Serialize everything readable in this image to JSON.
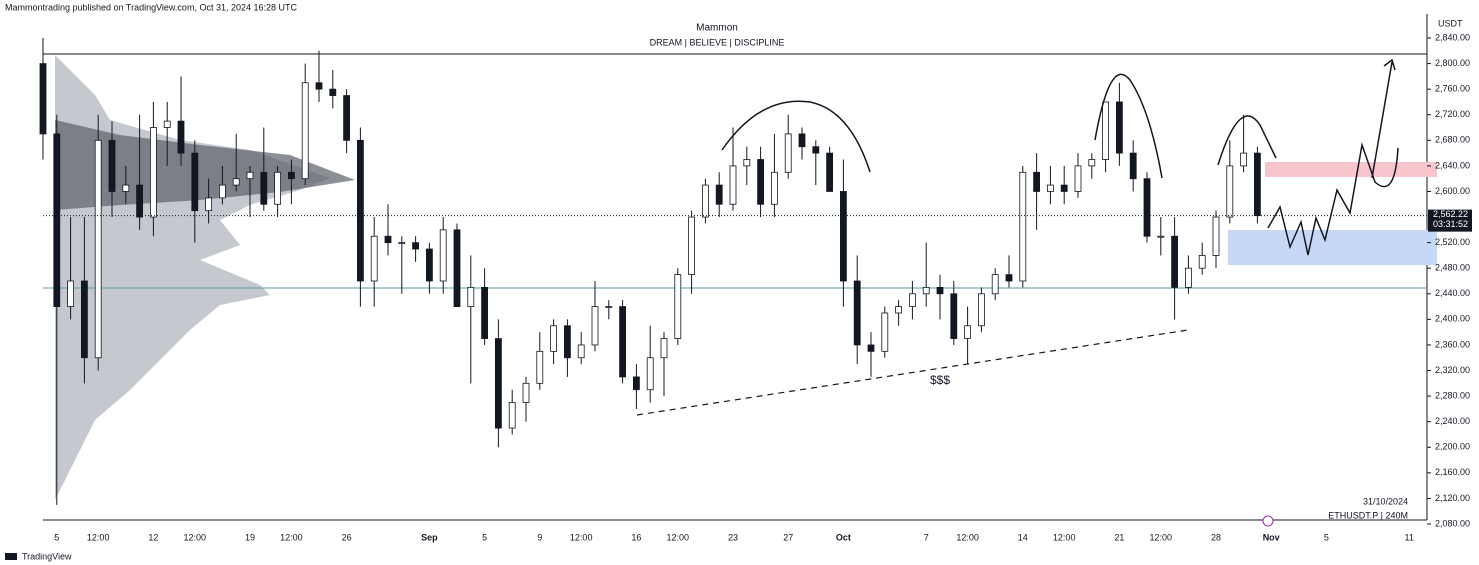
{
  "header": {
    "published": "Mammontrading published on TradingView.com, Oct 31, 2024 16:28 UTC"
  },
  "footer": {
    "brand": "TradingView"
  },
  "chart_data": {
    "type": "candlestick",
    "title": "Mammon",
    "subtitle": "DREAM | BELIEVE | DISCIPLINE",
    "currency": "USDT",
    "date_label": "31/10/2024",
    "symbol": "ETHUSDT.P | 240M",
    "annotation": "$$$",
    "last_price": 2562.22,
    "last_price_label": "2,562.22",
    "countdown": "03:31:52",
    "colors": {
      "up": "#ffffff",
      "down": "#131722",
      "wick": "#131722"
    },
    "ylim": [
      2080,
      2840
    ],
    "yticks": [
      {
        "value": 2080,
        "label": "2,080.00"
      },
      {
        "value": 2120,
        "label": "2,120.00"
      },
      {
        "value": 2160,
        "label": "2,160.00"
      },
      {
        "value": 2200,
        "label": "2,200.00"
      },
      {
        "value": 2240,
        "label": "2,240.00"
      },
      {
        "value": 2280,
        "label": "2,280.00"
      },
      {
        "value": 2320,
        "label": "2,320.00"
      },
      {
        "value": 2360,
        "label": "2,360.00"
      },
      {
        "value": 2400,
        "label": "2,400.00"
      },
      {
        "value": 2440,
        "label": "2,440.00"
      },
      {
        "value": 2480,
        "label": "2,480.00"
      },
      {
        "value": 2520,
        "label": "2,520.00"
      },
      {
        "value": 2600,
        "label": "2,600.00"
      },
      {
        "value": 2640,
        "label": "2,640.00"
      },
      {
        "value": 2680,
        "label": "2,680.00"
      },
      {
        "value": 2720,
        "label": "2,720.00"
      },
      {
        "value": 2760,
        "label": "2,760.00"
      },
      {
        "value": 2800,
        "label": "2,800.00"
      },
      {
        "value": 2840,
        "label": "2,840.00"
      }
    ],
    "categories": [
      null,
      "5",
      null,
      null,
      "12:00",
      null,
      null,
      null,
      "12",
      null,
      null,
      "12:00",
      null,
      null,
      null,
      "19",
      null,
      null,
      "12:00",
      null,
      null,
      null,
      "26",
      null,
      null,
      null,
      null,
      null,
      "Sep",
      null,
      null,
      null,
      "5",
      null,
      null,
      null,
      "9",
      null,
      null,
      "12:00",
      null,
      null,
      null,
      "16",
      null,
      null,
      "12:00",
      null,
      null,
      null,
      "23",
      null,
      null,
      null,
      "27",
      null,
      null,
      null,
      "Oct",
      null,
      null,
      null,
      null,
      null,
      "7",
      null,
      null,
      "12:00",
      null,
      null,
      null,
      "14",
      null,
      null,
      "12:00",
      null,
      null,
      null,
      "21",
      null,
      null,
      "12:00",
      null,
      null,
      null,
      "28",
      null,
      null,
      null,
      "Nov",
      null,
      null,
      null,
      "5",
      null,
      null,
      null,
      null,
      null,
      "11"
    ],
    "ohlc": [
      [
        2800,
        2840,
        2650,
        2690
      ],
      [
        2690,
        2720,
        2110,
        2420
      ],
      [
        2420,
        2560,
        2400,
        2460
      ],
      [
        2460,
        2560,
        2300,
        2340
      ],
      [
        2340,
        2720,
        2320,
        2680
      ],
      [
        2680,
        2710,
        2560,
        2600
      ],
      [
        2600,
        2640,
        2580,
        2610
      ],
      [
        2610,
        2720,
        2540,
        2560
      ],
      [
        2560,
        2740,
        2530,
        2700
      ],
      [
        2700,
        2740,
        2640,
        2710
      ],
      [
        2710,
        2780,
        2640,
        2660
      ],
      [
        2660,
        2680,
        2520,
        2570
      ],
      [
        2570,
        2620,
        2550,
        2590
      ],
      [
        2590,
        2640,
        2580,
        2610
      ],
      [
        2610,
        2690,
        2600,
        2620
      ],
      [
        2620,
        2640,
        2560,
        2630
      ],
      [
        2630,
        2700,
        2570,
        2580
      ],
      [
        2580,
        2640,
        2560,
        2630
      ],
      [
        2630,
        2650,
        2580,
        2620
      ],
      [
        2620,
        2800,
        2610,
        2770
      ],
      [
        2770,
        2820,
        2740,
        2760
      ],
      [
        2760,
        2790,
        2730,
        2750
      ],
      [
        2750,
        2760,
        2660,
        2680
      ],
      [
        2680,
        2700,
        2420,
        2460
      ],
      [
        2460,
        2560,
        2420,
        2530
      ],
      [
        2530,
        2580,
        2500,
        2520
      ],
      [
        2520,
        2530,
        2440,
        2520
      ],
      [
        2520,
        2530,
        2490,
        2510
      ],
      [
        2510,
        2520,
        2440,
        2460
      ],
      [
        2460,
        2560,
        2440,
        2540
      ],
      [
        2540,
        2550,
        2420,
        2420
      ],
      [
        2420,
        2500,
        2300,
        2450
      ],
      [
        2450,
        2480,
        2360,
        2370
      ],
      [
        2370,
        2400,
        2200,
        2230
      ],
      [
        2230,
        2290,
        2220,
        2270
      ],
      [
        2270,
        2310,
        2240,
        2300
      ],
      [
        2300,
        2380,
        2290,
        2350
      ],
      [
        2350,
        2400,
        2330,
        2390
      ],
      [
        2390,
        2400,
        2310,
        2340
      ],
      [
        2340,
        2380,
        2330,
        2360
      ],
      [
        2360,
        2460,
        2350,
        2420
      ],
      [
        2420,
        2430,
        2400,
        2420
      ],
      [
        2420,
        2430,
        2300,
        2310
      ],
      [
        2310,
        2330,
        2260,
        2290
      ],
      [
        2290,
        2390,
        2270,
        2340
      ],
      [
        2340,
        2380,
        2280,
        2370
      ],
      [
        2370,
        2480,
        2360,
        2470
      ],
      [
        2470,
        2570,
        2440,
        2560
      ],
      [
        2560,
        2620,
        2550,
        2610
      ],
      [
        2610,
        2630,
        2560,
        2580
      ],
      [
        2580,
        2700,
        2570,
        2640
      ],
      [
        2640,
        2670,
        2610,
        2650
      ],
      [
        2650,
        2670,
        2560,
        2580
      ],
      [
        2580,
        2690,
        2560,
        2630
      ],
      [
        2630,
        2720,
        2620,
        2690
      ],
      [
        2690,
        2700,
        2650,
        2670
      ],
      [
        2670,
        2680,
        2610,
        2660
      ],
      [
        2660,
        2670,
        2600,
        2600
      ],
      [
        2600,
        2650,
        2420,
        2460
      ],
      [
        2460,
        2500,
        2330,
        2360
      ],
      [
        2360,
        2380,
        2310,
        2350
      ],
      [
        2350,
        2420,
        2340,
        2410
      ],
      [
        2410,
        2430,
        2390,
        2420
      ],
      [
        2420,
        2460,
        2400,
        2440
      ],
      [
        2440,
        2520,
        2420,
        2450
      ],
      [
        2450,
        2470,
        2400,
        2440
      ],
      [
        2440,
        2460,
        2360,
        2370
      ],
      [
        2370,
        2420,
        2330,
        2390
      ],
      [
        2390,
        2450,
        2380,
        2440
      ],
      [
        2440,
        2480,
        2430,
        2470
      ],
      [
        2470,
        2500,
        2450,
        2460
      ],
      [
        2460,
        2640,
        2450,
        2630
      ],
      [
        2630,
        2660,
        2540,
        2600
      ],
      [
        2600,
        2640,
        2580,
        2610
      ],
      [
        2610,
        2640,
        2580,
        2600
      ],
      [
        2600,
        2660,
        2590,
        2640
      ],
      [
        2640,
        2660,
        2620,
        2650
      ],
      [
        2650,
        2740,
        2630,
        2740
      ],
      [
        2740,
        2770,
        2640,
        2660
      ],
      [
        2660,
        2680,
        2600,
        2620
      ],
      [
        2620,
        2630,
        2520,
        2530
      ],
      [
        2530,
        2560,
        2500,
        2530
      ],
      [
        2530,
        2560,
        2400,
        2450
      ],
      [
        2450,
        2500,
        2440,
        2480
      ],
      [
        2480,
        2520,
        2470,
        2500
      ],
      [
        2500,
        2570,
        2480,
        2560
      ],
      [
        2560,
        2680,
        2550,
        2640
      ],
      [
        2640,
        2720,
        2630,
        2660
      ],
      [
        2660,
        2670,
        2550,
        2562.22
      ],
      null,
      null,
      null,
      null,
      null,
      null,
      null,
      null,
      null,
      null,
      null
    ]
  }
}
